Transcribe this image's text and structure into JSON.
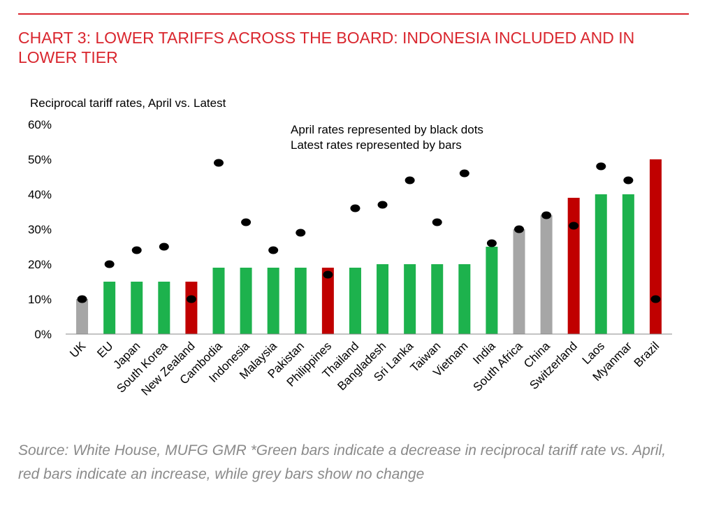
{
  "title": "CHART 3: LOWER TARIFFS ACROSS THE BOARD: INDONESIA INCLUDED AND IN LOWER TIER",
  "subtitle": "Reciprocal tariff rates, April vs. Latest",
  "notes": {
    "line1": "April rates represented by black dots",
    "line2": "Latest rates represented by bars"
  },
  "source": "Source: White House, MUFG GMR *Green bars indicate a decrease in reciprocal tariff rate vs. April, red bars indicate an increase, while grey bars show no change",
  "colors": {
    "title": "#d9262e",
    "green": "#1db24d",
    "red": "#c00000",
    "grey": "#a6a6a6",
    "dot": "#000000",
    "source": "#8a8a8a"
  },
  "chart_data": {
    "type": "bar",
    "ylim": [
      0,
      60
    ],
    "yticks": [
      "0%",
      "10%",
      "20%",
      "30%",
      "40%",
      "50%",
      "60%"
    ],
    "grid": false,
    "categories": [
      "UK",
      "EU",
      "Japan",
      "South Korea",
      "New Zealand",
      "Cambodia",
      "Indonesia",
      "Malaysia",
      "Pakistan",
      "Philippines",
      "Thailand",
      "Bangladesh",
      "Sri Lanka",
      "Taiwan",
      "Vietnam",
      "India",
      "South Africa",
      "China",
      "Switzerland",
      "Laos",
      "Myanmar",
      "Brazil"
    ],
    "series": [
      {
        "values": [
          10,
          15,
          15,
          15,
          15,
          19,
          19,
          19,
          19,
          19,
          19,
          20,
          20,
          20,
          20,
          25,
          30,
          34,
          39,
          40,
          40,
          50
        ],
        "change": [
          "grey",
          "green",
          "green",
          "green",
          "red",
          "green",
          "green",
          "green",
          "green",
          "red",
          "green",
          "green",
          "green",
          "green",
          "green",
          "green",
          "grey",
          "grey",
          "red",
          "green",
          "green",
          "red"
        ]
      },
      {
        "values": [
          10,
          20,
          24,
          25,
          10,
          49,
          32,
          24,
          29,
          17,
          36,
          37,
          44,
          32,
          46,
          26,
          30,
          34,
          31,
          48,
          44,
          10
        ]
      }
    ]
  }
}
